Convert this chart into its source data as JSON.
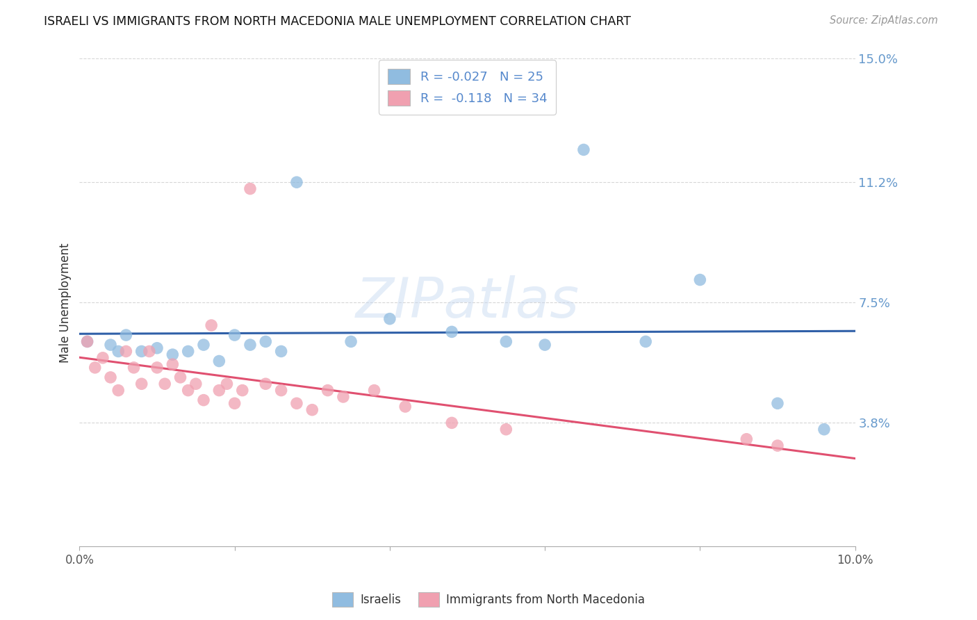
{
  "title": "ISRAELI VS IMMIGRANTS FROM NORTH MACEDONIA MALE UNEMPLOYMENT CORRELATION CHART",
  "source": "Source: ZipAtlas.com",
  "ylabel": "Male Unemployment",
  "xlim": [
    0,
    0.1
  ],
  "ylim": [
    0,
    0.15
  ],
  "yticks": [
    0.038,
    0.075,
    0.112,
    0.15
  ],
  "ytick_labels": [
    "3.8%",
    "7.5%",
    "11.2%",
    "15.0%"
  ],
  "xticks": [
    0.0,
    0.02,
    0.04,
    0.06,
    0.08,
    0.1
  ],
  "xtick_labels": [
    "0.0%",
    "",
    "",
    "",
    "",
    "10.0%"
  ],
  "israelis_x": [
    0.001,
    0.004,
    0.005,
    0.006,
    0.008,
    0.01,
    0.012,
    0.014,
    0.016,
    0.018,
    0.02,
    0.022,
    0.024,
    0.026,
    0.028,
    0.035,
    0.04,
    0.048,
    0.055,
    0.06,
    0.065,
    0.073,
    0.08,
    0.09,
    0.096
  ],
  "israelis_y": [
    0.063,
    0.062,
    0.06,
    0.065,
    0.06,
    0.061,
    0.059,
    0.06,
    0.062,
    0.057,
    0.065,
    0.062,
    0.063,
    0.06,
    0.112,
    0.063,
    0.07,
    0.066,
    0.063,
    0.062,
    0.122,
    0.063,
    0.082,
    0.044,
    0.036
  ],
  "macedonia_x": [
    0.001,
    0.002,
    0.003,
    0.004,
    0.005,
    0.006,
    0.007,
    0.008,
    0.009,
    0.01,
    0.011,
    0.012,
    0.013,
    0.014,
    0.015,
    0.016,
    0.017,
    0.018,
    0.019,
    0.02,
    0.021,
    0.022,
    0.024,
    0.026,
    0.028,
    0.03,
    0.032,
    0.034,
    0.038,
    0.042,
    0.048,
    0.055,
    0.086,
    0.09
  ],
  "macedonia_y": [
    0.063,
    0.055,
    0.058,
    0.052,
    0.048,
    0.06,
    0.055,
    0.05,
    0.06,
    0.055,
    0.05,
    0.056,
    0.052,
    0.048,
    0.05,
    0.045,
    0.068,
    0.048,
    0.05,
    0.044,
    0.048,
    0.11,
    0.05,
    0.048,
    0.044,
    0.042,
    0.048,
    0.046,
    0.048,
    0.043,
    0.038,
    0.036,
    0.033,
    0.031
  ],
  "israeli_color": "#90bce0",
  "macedonia_color": "#f0a0b0",
  "israeli_line_color": "#3060a8",
  "macedonia_line_color": "#e05070",
  "watermark": "ZIPatlas",
  "background_color": "#ffffff",
  "grid_color": "#cccccc",
  "legend_label_blue": "R = -0.027   N = 25",
  "legend_label_pink": "R =  -0.118   N = 34",
  "bottom_label_blue": "Israelis",
  "bottom_label_pink": "Immigrants from North Macedonia"
}
